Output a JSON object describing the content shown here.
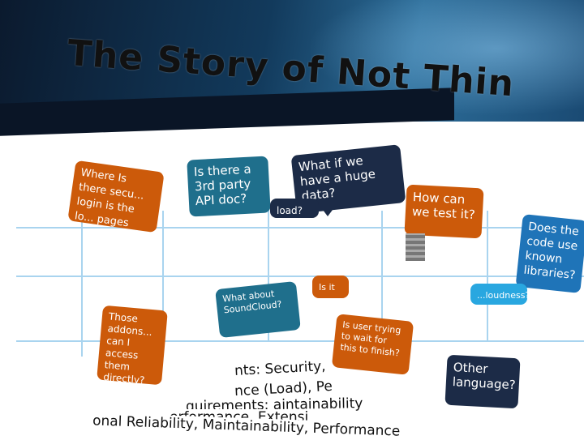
{
  "slide": {
    "title": "The Story of Not Thin"
  },
  "bubbles": {
    "b1": "Where Is there secu... login is the lo... pages",
    "b2": "Is there a 3rd party API doc?",
    "b3": "What if we have a huge data?",
    "b4": "How can we test it?",
    "b5": "Does the code use known libraries?",
    "b6": "What about SoundCloud?",
    "b7": "Those addons... can I access them directly?",
    "b8": "Is user trying to wait for this to finish?",
    "b9": "Other language?",
    "b10": "Is it ...",
    "b11": "...loudness?",
    "b12": "load?"
  },
  "requirements": {
    "line1": "nts: Security,",
    "line2": "nce (Load), Pe",
    "line3": "quirements: aintainability",
    "line4": "erformance, Extensi",
    "line5": "onal Reliability, Maintainability, Performance"
  },
  "colors": {
    "accent_orange": "#cc5a0a",
    "accent_teal": "#1f6f8c",
    "accent_navy": "#1c2b47",
    "accent_sky": "#29a7e0"
  }
}
